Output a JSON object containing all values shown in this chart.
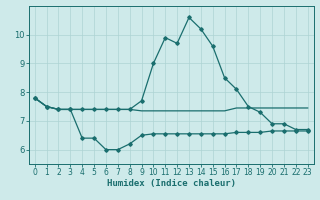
{
  "xlabel": "Humidex (Indice chaleur)",
  "background_color": "#ceeaea",
  "grid_color": "#aed4d4",
  "line_color": "#1a6e6e",
  "spine_color": "#1a6e6e",
  "xlim": [
    -0.5,
    23.5
  ],
  "ylim": [
    5.5,
    11.0
  ],
  "yticks": [
    6,
    7,
    8,
    9,
    10
  ],
  "xticks": [
    0,
    1,
    2,
    3,
    4,
    5,
    6,
    7,
    8,
    9,
    10,
    11,
    12,
    13,
    14,
    15,
    16,
    17,
    18,
    19,
    20,
    21,
    22,
    23
  ],
  "series1_x": [
    0,
    1,
    2,
    3,
    4,
    5,
    6,
    7,
    8,
    9,
    10,
    11,
    12,
    13,
    14,
    15,
    16,
    17,
    18,
    19,
    20,
    21,
    22,
    23
  ],
  "series1_y": [
    7.8,
    7.5,
    7.4,
    7.4,
    7.4,
    7.4,
    7.4,
    7.4,
    7.4,
    7.7,
    9.0,
    9.9,
    9.7,
    10.6,
    10.2,
    9.6,
    8.5,
    8.1,
    7.5,
    7.3,
    6.9,
    6.9,
    6.7,
    6.7
  ],
  "series2_x": [
    0,
    1,
    2,
    3,
    4,
    5,
    6,
    7,
    8,
    9,
    10,
    11,
    12,
    13,
    14,
    15,
    16,
    17,
    18,
    19,
    20,
    21,
    22,
    23
  ],
  "series2_y": [
    7.8,
    7.5,
    7.4,
    7.4,
    6.4,
    6.4,
    6.0,
    6.0,
    6.2,
    6.5,
    6.55,
    6.55,
    6.55,
    6.55,
    6.55,
    6.55,
    6.55,
    6.6,
    6.6,
    6.6,
    6.65,
    6.65,
    6.65,
    6.65
  ],
  "series3_x": [
    0,
    1,
    2,
    3,
    4,
    5,
    6,
    7,
    8,
    9,
    10,
    11,
    12,
    13,
    14,
    15,
    16,
    17,
    18,
    19,
    20,
    21,
    22,
    23
  ],
  "series3_y": [
    7.8,
    7.5,
    7.4,
    7.4,
    7.4,
    7.4,
    7.4,
    7.4,
    7.4,
    7.35,
    7.35,
    7.35,
    7.35,
    7.35,
    7.35,
    7.35,
    7.35,
    7.45,
    7.45,
    7.45,
    7.45,
    7.45,
    7.45,
    7.45
  ],
  "marker": "D",
  "markersize": 1.8,
  "linewidth": 0.9,
  "tick_fontsize": 5.5,
  "xlabel_fontsize": 6.5
}
